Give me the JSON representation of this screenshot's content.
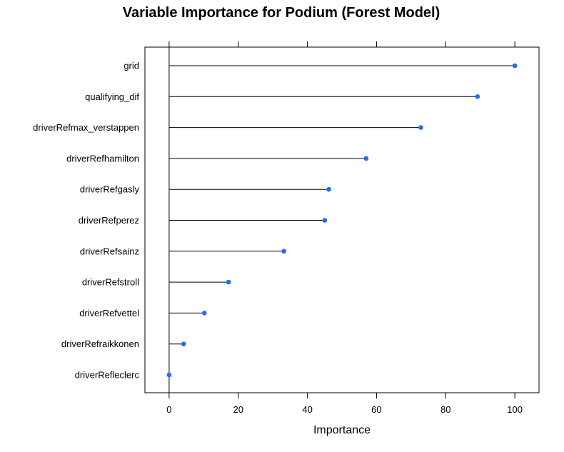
{
  "chart_data": {
    "type": "dot",
    "title": "Variable Importance for Podium (Forest Model)",
    "xlabel": "Importance",
    "ylabel": "",
    "xlim": [
      -7,
      107
    ],
    "xticks": [
      0,
      20,
      40,
      60,
      80,
      100
    ],
    "grid": false,
    "legend": "none",
    "categories": [
      "grid",
      "qualifying_dif",
      "driverRefmax_verstappen",
      "driverRefhamilton",
      "driverRefgasly",
      "driverRefperez",
      "driverRefsainz",
      "driverRefstroll",
      "driverRefvettel",
      "driverRefraikkonen",
      "driverRefleclerc"
    ],
    "values": [
      100,
      89.2,
      72.8,
      57.0,
      46.2,
      45.0,
      33.2,
      17.2,
      10.2,
      4.2,
      0
    ]
  },
  "colors": {
    "point": "#1f6cf6",
    "line": "#000000",
    "axis": "#000000"
  }
}
